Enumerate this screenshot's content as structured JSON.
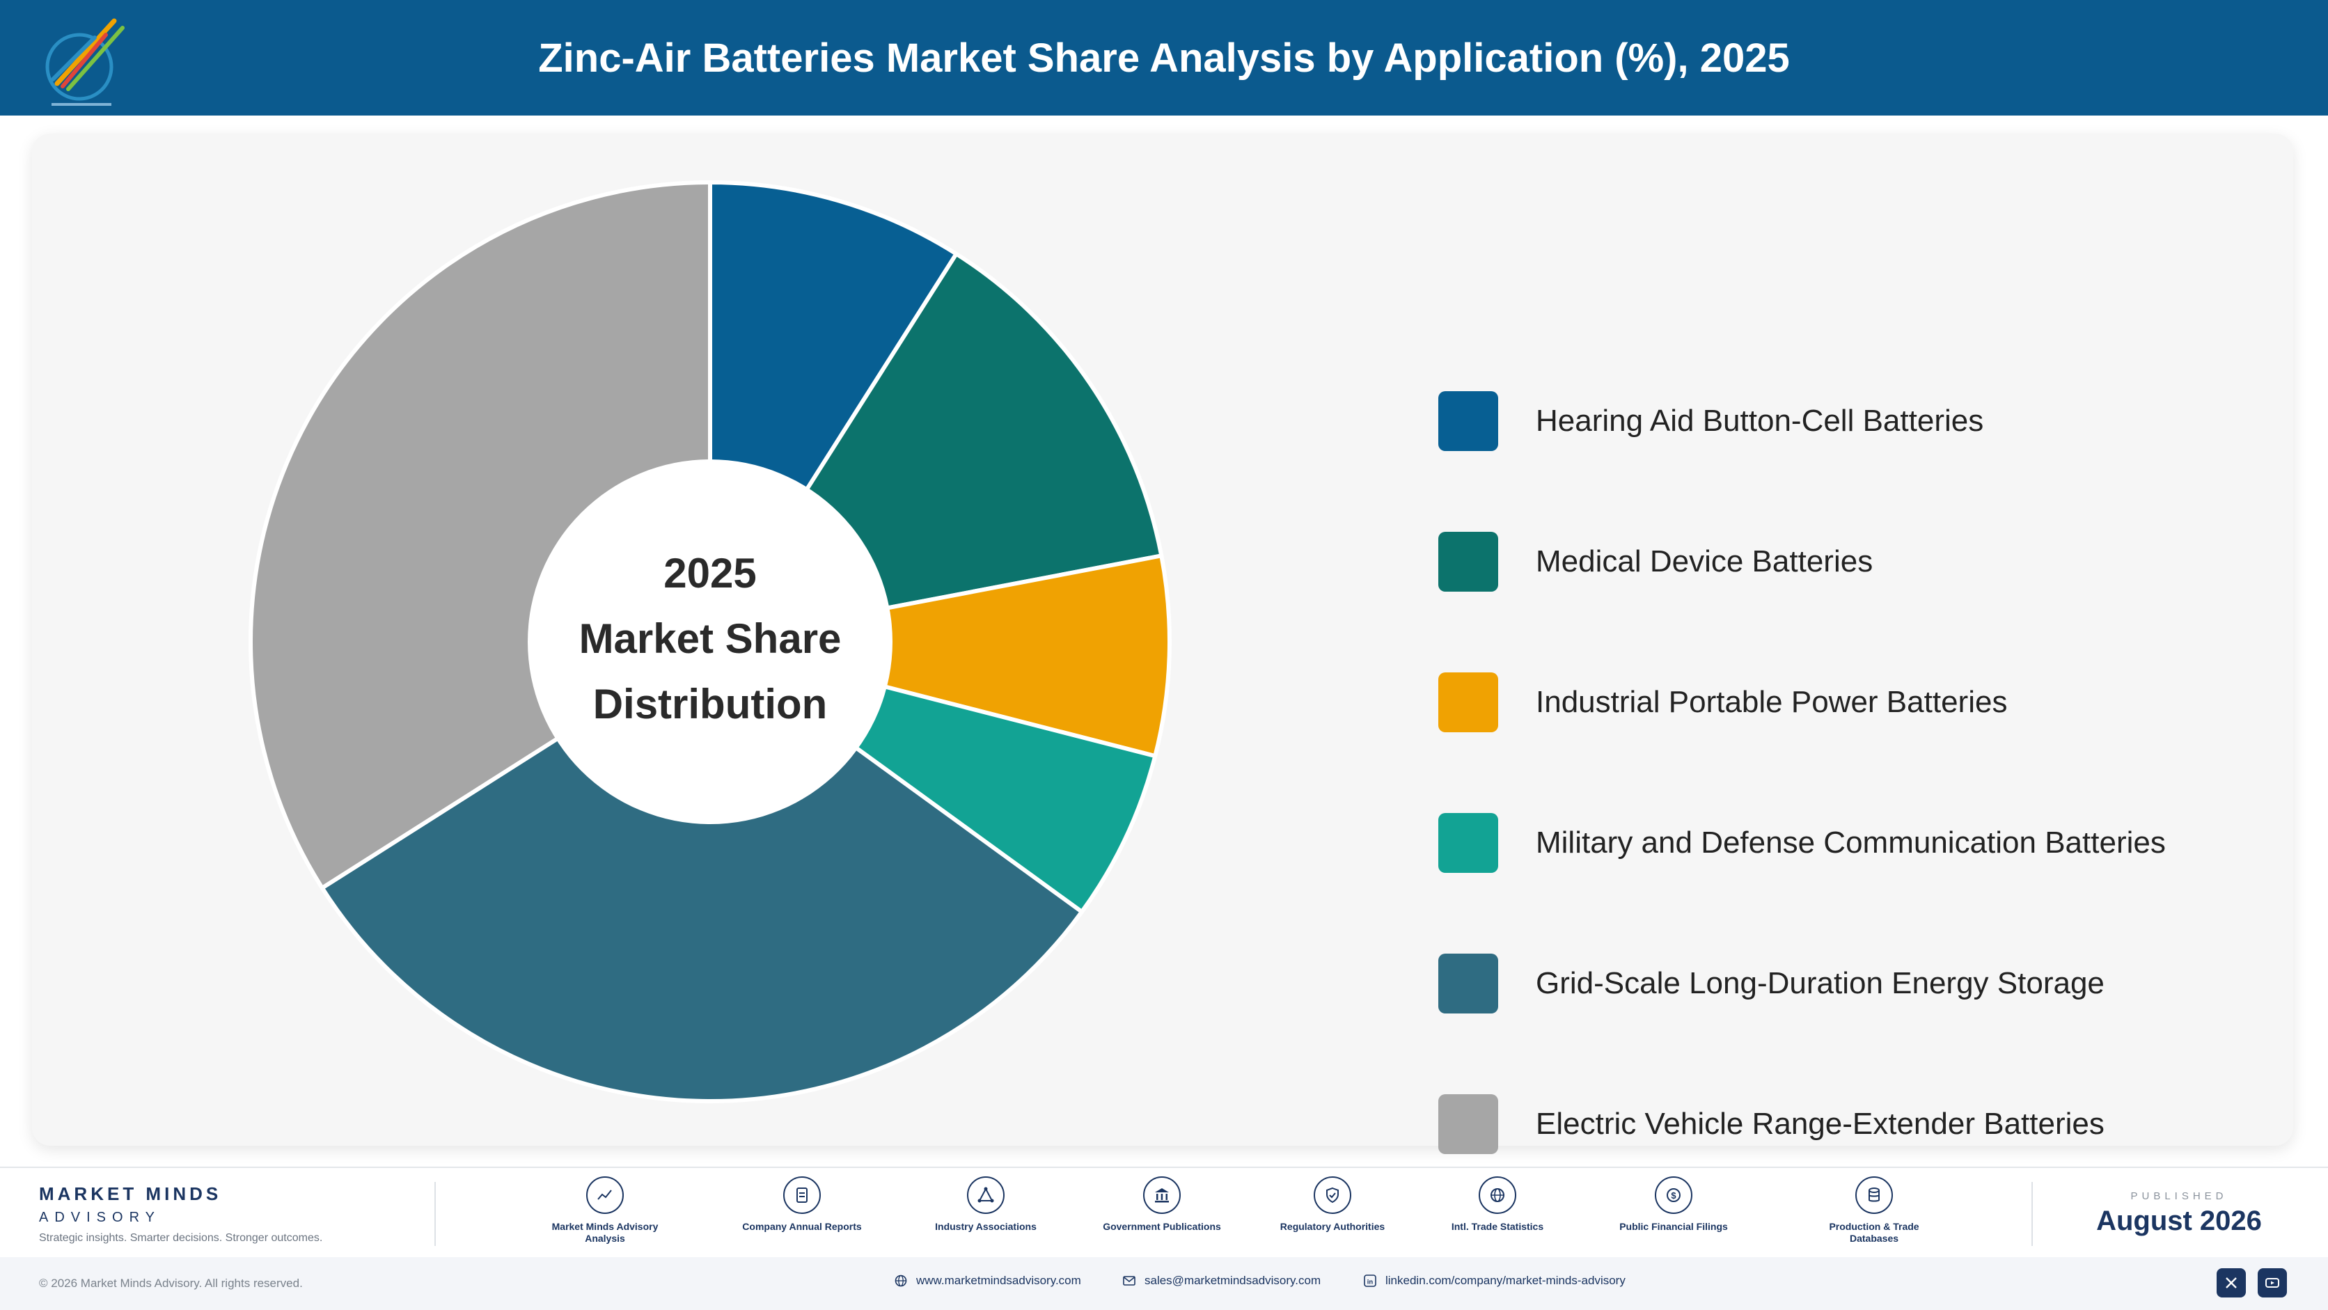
{
  "header": {
    "title": "Zinc-Air Batteries Market Share Analysis by Application (%), 2025",
    "logo_icon": "market-minds-logo-icon"
  },
  "chart_data": {
    "type": "pie",
    "title": "Zinc-Air Batteries Market Share Analysis by Application (%), 2025",
    "center_label": [
      "2025",
      "Market Share",
      "Distribution"
    ],
    "donut": true,
    "legend_position": "right",
    "categories": [
      "Hearing Aid Button-Cell Batteries",
      "Medical Device Batteries",
      "Industrial Portable Power Batteries",
      "Military and Defense Communication Batteries",
      "Grid-Scale Long-Duration Energy Storage",
      "Electric Vehicle Range-Extender Batteries"
    ],
    "values": [
      9,
      13,
      7,
      6,
      31,
      34
    ],
    "colors": [
      "#075f93",
      "#0c736c",
      "#f0a202",
      "#12a394",
      "#2f6c82",
      "#a6a6a6"
    ]
  },
  "footer": {
    "brand_name": "MARKET MINDS",
    "brand_sub": "ADVISORY",
    "tagline": "Strategic insights. Smarter decisions. Stronger outcomes.",
    "sources": [
      {
        "label": "Market Minds Advisory Analysis",
        "icon": "trend-line-icon"
      },
      {
        "label": "Company Annual Reports",
        "icon": "document-icon"
      },
      {
        "label": "Industry Associations",
        "icon": "network-icon"
      },
      {
        "label": "Government Publications",
        "icon": "government-building-icon"
      },
      {
        "label": "Regulatory Authorities",
        "icon": "shield-check-icon"
      },
      {
        "label": "Intl. Trade Statistics",
        "icon": "globe-icon"
      },
      {
        "label": "Public Financial Filings",
        "icon": "dollar-coin-icon"
      },
      {
        "label": "Production & Trade Databases",
        "icon": "database-icon"
      }
    ],
    "published_label": "PUBLISHED",
    "published_date": "August 2026",
    "copyright": "© 2026 Market Minds Advisory. All rights reserved.",
    "website": "www.marketmindsadvisory.com",
    "email": "sales@marketmindsadvisory.com",
    "linkedin": "linkedin.com/company/market-minds-advisory"
  }
}
